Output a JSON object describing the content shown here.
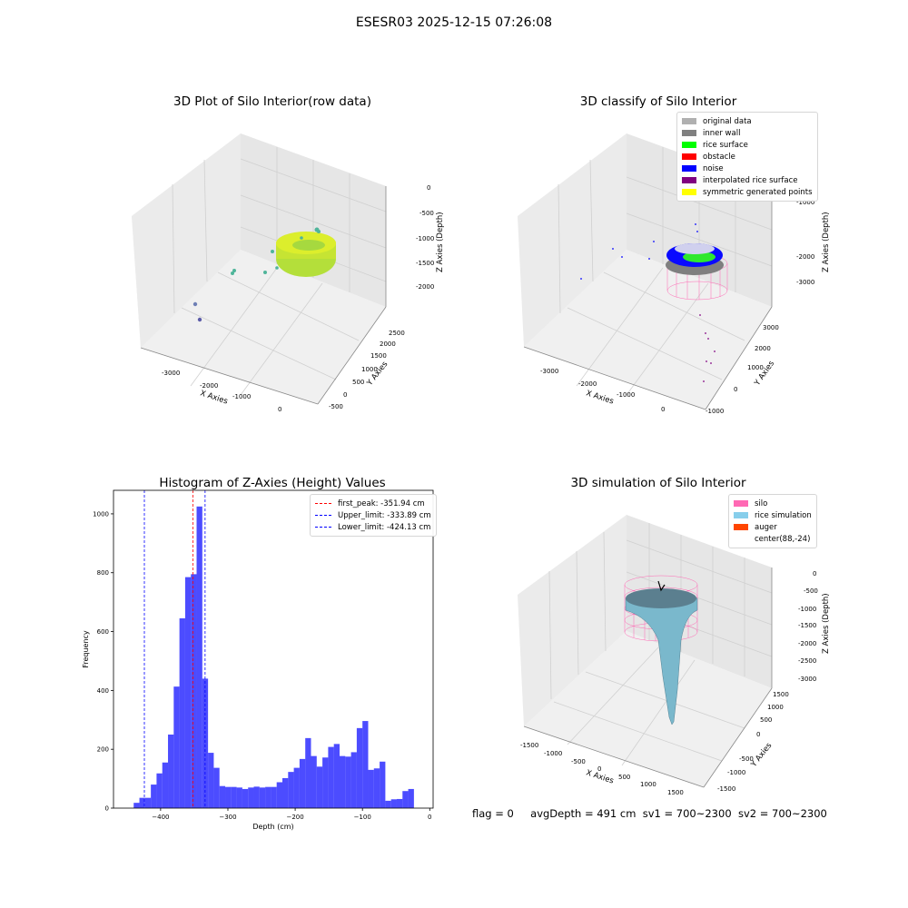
{
  "figure": {
    "title": "ESESR03 2025-12-15 07:26:08",
    "status": {
      "flag": "flag = 0",
      "avg_depth": "avgDepth = 491 cm",
      "sv1": "sv1 = 700~2300",
      "sv2": "sv2 = 700~2300"
    }
  },
  "panels": {
    "raw": {
      "title": "3D Plot of Silo Interior(row data)",
      "xlabel": "X Axies",
      "ylabel": "Y Axies",
      "zlabel": "Z Axies (Depth)",
      "xticks": [
        "-3000",
        "-2000",
        "-1000",
        "0"
      ],
      "yticks": [
        "-500",
        "0",
        "500",
        "1000",
        "1500",
        "2000",
        "2500"
      ],
      "zticks": [
        "0",
        "-500",
        "-1000",
        "-1500",
        "-2000"
      ]
    },
    "classify": {
      "title": "3D classify of Silo Interior",
      "xlabel": "X Axies",
      "ylabel": "Y Axies",
      "zlabel": "Z Axies (Depth)",
      "xticks": [
        "-3000",
        "-2000",
        "-1000",
        "0"
      ],
      "yticks": [
        "-1000",
        "0",
        "1000",
        "2000",
        "3000"
      ],
      "zticks": [
        "-1000",
        "-2000",
        "-3000"
      ],
      "legend": [
        {
          "label": "original data",
          "color": "#b0b0b0"
        },
        {
          "label": "inner wall",
          "color": "#808080"
        },
        {
          "label": "rice surface",
          "color": "#00ff00"
        },
        {
          "label": "obstacle",
          "color": "#ff0000"
        },
        {
          "label": "noise",
          "color": "#0000ff"
        },
        {
          "label": "interpolated rice surface",
          "color": "#800080"
        },
        {
          "label": "symmetric generated points",
          "color": "#ffff00"
        }
      ]
    },
    "simulation": {
      "title": "3D simulation of Silo Interior",
      "xlabel": "X Axies",
      "ylabel": "Y Axies",
      "zlabel": "Z Axies (Depth)",
      "xticks": [
        "-1500",
        "-1000",
        "-500",
        "0",
        "500",
        "1000",
        "1500"
      ],
      "yticks": [
        "-1500",
        "-1000",
        "-500",
        "0",
        "500",
        "1000",
        "1500"
      ],
      "zticks": [
        "0",
        "-500",
        "-1000",
        "-1500",
        "-2000",
        "-2500",
        "-3000"
      ],
      "legend": [
        {
          "label": "silo",
          "color": "#ff69b4"
        },
        {
          "label": "rice simulation",
          "color": "#87ceeb"
        },
        {
          "label": "auger",
          "color": "#ff4500"
        },
        {
          "label": "center(88,-24)",
          "color": "#ffffff"
        }
      ]
    }
  },
  "chart_data": [
    {
      "type": "bar",
      "title": "Histogram of Z-Axies (Height) Values",
      "xlabel": "Depth (cm)",
      "ylabel": "Frequency",
      "xlim": [
        -470,
        5
      ],
      "ylim": [
        0,
        1080
      ],
      "bin_width": 8.5,
      "bin_start": -440,
      "values": [
        18,
        35,
        35,
        80,
        118,
        155,
        250,
        413,
        645,
        785,
        795,
        1025,
        440,
        188,
        137,
        75,
        72,
        72,
        70,
        65,
        70,
        73,
        70,
        72,
        72,
        88,
        102,
        123,
        137,
        167,
        238,
        177,
        141,
        172,
        208,
        218,
        177,
        175,
        190,
        272,
        296,
        130,
        135,
        158,
        25,
        30,
        31,
        58,
        65
      ],
      "color": "#0000ff",
      "xticks": [
        -400,
        -300,
        -200,
        -100,
        0
      ],
      "yticks": [
        0,
        200,
        400,
        600,
        800,
        1000
      ],
      "lines": [
        {
          "label": "first_peak: -351.94 cm",
          "x": -351.94,
          "color": "#ff0000"
        },
        {
          "label": "Upper_limit: -333.89 cm",
          "x": -333.89,
          "color": "#0000ff"
        },
        {
          "label": "Lower_limit: -424.13 cm",
          "x": -424.13,
          "color": "#0000ff"
        }
      ],
      "legend_position": "top-right"
    }
  ]
}
